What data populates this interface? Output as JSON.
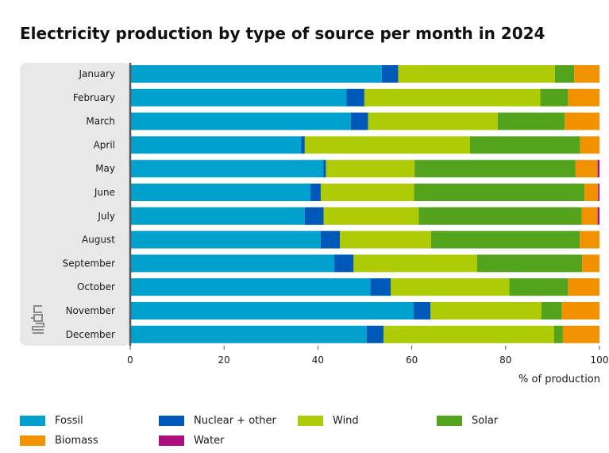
{
  "chart_data": {
    "type": "bar",
    "orientation": "horizontal",
    "stacked": true,
    "title": "Electricity production by type of source per month in 2024",
    "xlabel": "% of production",
    "ylabel": "",
    "xlim": [
      0,
      100
    ],
    "xticks": [
      "0",
      "20",
      "40",
      "60",
      "80",
      "100"
    ],
    "categories": [
      "January",
      "February",
      "March",
      "April",
      "May",
      "June",
      "July",
      "August",
      "September",
      "October",
      "November",
      "December"
    ],
    "series": [
      {
        "name": "Fossil",
        "color": "#00a1cd",
        "values": [
          53.6,
          46.1,
          47.0,
          36.4,
          41.2,
          38.4,
          37.2,
          40.6,
          43.5,
          51.2,
          60.4,
          50.4
        ]
      },
      {
        "name": "Nuclear + other",
        "color": "#0058b8",
        "values": [
          3.5,
          3.8,
          3.7,
          0.8,
          0.5,
          2.2,
          4.0,
          4.1,
          4.1,
          4.3,
          3.6,
          3.6
        ]
      },
      {
        "name": "Wind",
        "color": "#afcb05",
        "values": [
          33.4,
          37.5,
          27.6,
          35.2,
          18.9,
          19.9,
          20.3,
          19.4,
          26.3,
          25.3,
          23.6,
          36.3
        ]
      },
      {
        "name": "Solar",
        "color": "#53a31d",
        "values": [
          4.1,
          5.9,
          14.3,
          23.5,
          34.3,
          36.3,
          34.7,
          31.7,
          22.4,
          12.5,
          4.4,
          1.9
        ]
      },
      {
        "name": "Biomass",
        "color": "#f39200",
        "values": [
          5.4,
          6.7,
          7.4,
          4.1,
          4.7,
          2.9,
          3.4,
          4.2,
          3.7,
          6.7,
          8.0,
          7.8
        ]
      },
      {
        "name": "Water",
        "color": "#af0e80",
        "values": [
          0.0,
          0.0,
          0.0,
          0.0,
          0.4,
          0.3,
          0.4,
          0.0,
          0.0,
          0.0,
          0.0,
          0.0
        ]
      }
    ],
    "legend_position": "bottom",
    "grid": false
  },
  "logo": {
    "name": "cbs-logo-icon"
  }
}
